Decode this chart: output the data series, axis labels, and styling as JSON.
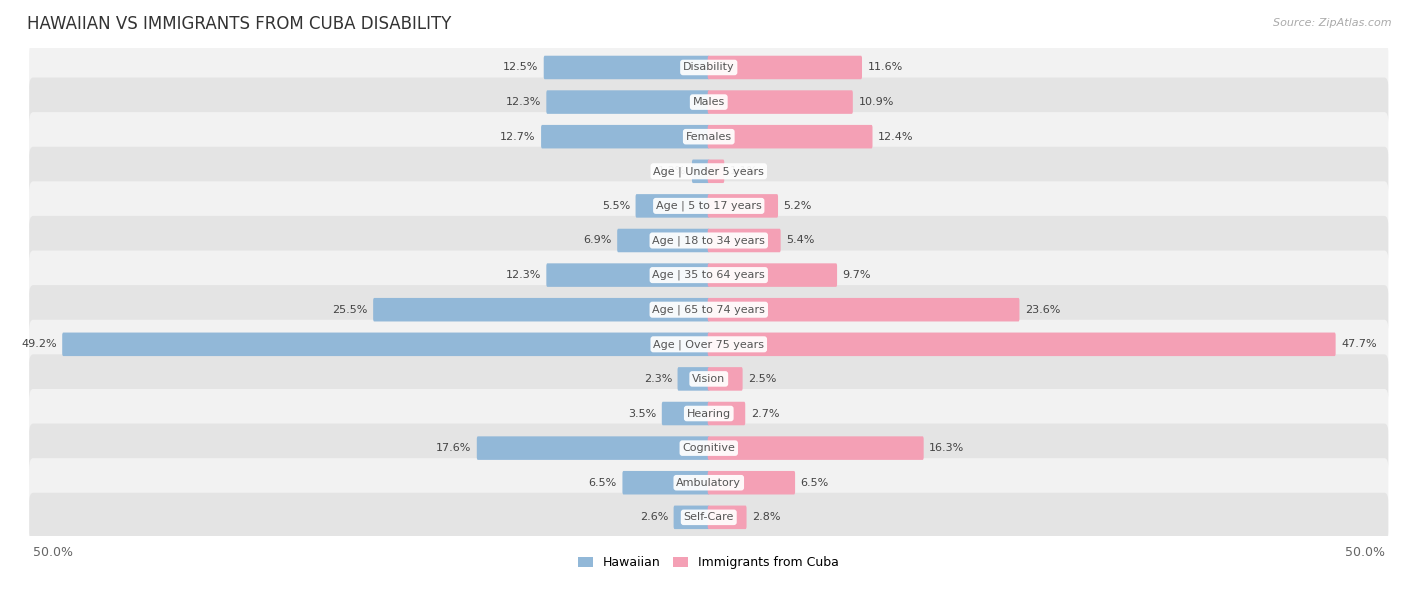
{
  "title": "HAWAIIAN VS IMMIGRANTS FROM CUBA DISABILITY",
  "source": "Source: ZipAtlas.com",
  "categories": [
    "Disability",
    "Males",
    "Females",
    "Age | Under 5 years",
    "Age | 5 to 17 years",
    "Age | 18 to 34 years",
    "Age | 35 to 64 years",
    "Age | 65 to 74 years",
    "Age | Over 75 years",
    "Vision",
    "Hearing",
    "Cognitive",
    "Ambulatory",
    "Self-Care"
  ],
  "hawaiian": [
    12.5,
    12.3,
    12.7,
    1.2,
    5.5,
    6.9,
    12.3,
    25.5,
    49.2,
    2.3,
    3.5,
    17.6,
    6.5,
    2.6
  ],
  "cuba": [
    11.6,
    10.9,
    12.4,
    1.1,
    5.2,
    5.4,
    9.7,
    23.6,
    47.7,
    2.5,
    2.7,
    16.3,
    6.5,
    2.8
  ],
  "max_val": 50.0,
  "hawaiian_color": "#92b8d8",
  "cuba_color": "#f4a0b5",
  "hawaiian_label": "Hawaiian",
  "cuba_label": "Immigrants from Cuba",
  "row_bg_light": "#f2f2f2",
  "row_bg_dark": "#e4e4e4",
  "bar_height": 0.52,
  "title_fontsize": 12,
  "label_fontsize": 8,
  "value_fontsize": 8,
  "legend_fontsize": 9,
  "axis_tick_fontsize": 9
}
